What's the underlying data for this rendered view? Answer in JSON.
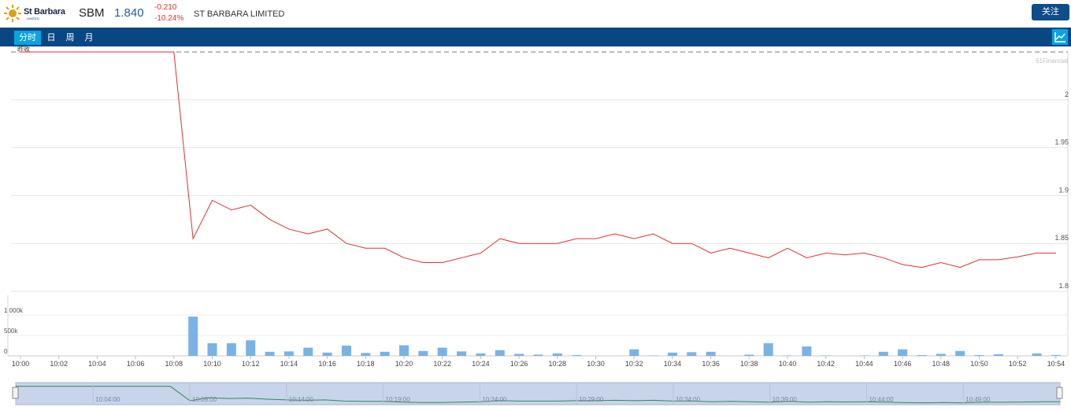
{
  "header": {
    "logo_text": "St Barbara",
    "logo_sub": "LIMITED",
    "ticker": "SBM",
    "price": "1.840",
    "change": "-0.210",
    "change_pct": "-10.24%",
    "company": "ST BARBARA LIMITED",
    "follow_label": "关注"
  },
  "tabs": [
    {
      "label": "分时",
      "active": true
    },
    {
      "label": "日",
      "active": false
    },
    {
      "label": "周",
      "active": false
    },
    {
      "label": "月",
      "active": false
    }
  ],
  "chart_icon": "line-chart-icon",
  "watermark": "61Financial",
  "prev_close_label": "昨收",
  "colors": {
    "price_line": "#e03030",
    "volume_bar": "#7ab2e6",
    "nav_bg": "#094783",
    "active_tab": "#0aa4e0",
    "navigator_line": "#2e8b57",
    "navigator_bg": "#c8d4ea"
  },
  "chart_data": [
    {
      "type": "line",
      "title": "",
      "x": [
        "10:00",
        "10:01",
        "10:02",
        "10:03",
        "10:04",
        "10:05",
        "10:06",
        "10:07",
        "10:08",
        "10:09",
        "10:10",
        "10:11",
        "10:12",
        "10:13",
        "10:14",
        "10:15",
        "10:16",
        "10:17",
        "10:18",
        "10:19",
        "10:20",
        "10:21",
        "10:22",
        "10:23",
        "10:24",
        "10:25",
        "10:26",
        "10:27",
        "10:28",
        "10:29",
        "10:30",
        "10:31",
        "10:32",
        "10:33",
        "10:34",
        "10:35",
        "10:36",
        "10:37",
        "10:38",
        "10:39",
        "10:40",
        "10:41",
        "10:42",
        "10:43",
        "10:44",
        "10:45",
        "10:46",
        "10:47",
        "10:48",
        "10:49",
        "10:50",
        "10:51",
        "10:52",
        "10:53",
        "10:54"
      ],
      "values": [
        2.05,
        2.05,
        2.05,
        2.05,
        2.05,
        2.05,
        2.05,
        2.05,
        2.05,
        1.855,
        1.895,
        1.885,
        1.89,
        1.875,
        1.865,
        1.86,
        1.865,
        1.85,
        1.845,
        1.845,
        1.835,
        1.83,
        1.83,
        1.835,
        1.84,
        1.855,
        1.85,
        1.85,
        1.85,
        1.855,
        1.855,
        1.86,
        1.855,
        1.86,
        1.85,
        1.85,
        1.84,
        1.845,
        1.84,
        1.835,
        1.845,
        1.835,
        1.84,
        1.838,
        1.84,
        1.835,
        1.828,
        1.825,
        1.83,
        1.825,
        1.833,
        1.833,
        1.836,
        1.84,
        1.84
      ],
      "prev_close": 2.05,
      "ylim": [
        1.8,
        2.05
      ],
      "yticks": [
        "2",
        "1.95",
        "1.9",
        "1.85",
        "1.8"
      ],
      "xticks": [
        "10:00",
        "10:02",
        "10:04",
        "10:06",
        "10:08",
        "10:10",
        "10:12",
        "10:14",
        "10:16",
        "10:18",
        "10:20",
        "10:22",
        "10:24",
        "10:26",
        "10:28",
        "10:30",
        "10:32",
        "10:34",
        "10:36",
        "10:38",
        "10:40",
        "10:42",
        "10:44",
        "10:46",
        "10:48",
        "10:50",
        "10:52",
        "10:54"
      ],
      "grid": true
    },
    {
      "type": "bar",
      "title": "",
      "x": [
        "10:00",
        "10:01",
        "10:02",
        "10:03",
        "10:04",
        "10:05",
        "10:06",
        "10:07",
        "10:08",
        "10:09",
        "10:10",
        "10:11",
        "10:12",
        "10:13",
        "10:14",
        "10:15",
        "10:16",
        "10:17",
        "10:18",
        "10:19",
        "10:20",
        "10:21",
        "10:22",
        "10:23",
        "10:24",
        "10:25",
        "10:26",
        "10:27",
        "10:28",
        "10:29",
        "10:30",
        "10:31",
        "10:32",
        "10:33",
        "10:34",
        "10:35",
        "10:36",
        "10:37",
        "10:38",
        "10:39",
        "10:40",
        "10:41",
        "10:42",
        "10:43",
        "10:44",
        "10:45",
        "10:46",
        "10:47",
        "10:48",
        "10:49",
        "10:50",
        "10:51",
        "10:52",
        "10:53",
        "10:54"
      ],
      "values": [
        0,
        0,
        0,
        0,
        0,
        0,
        0,
        0,
        0,
        960000,
        310000,
        310000,
        380000,
        100000,
        110000,
        200000,
        80000,
        250000,
        70000,
        100000,
        260000,
        120000,
        200000,
        110000,
        60000,
        140000,
        50000,
        30000,
        60000,
        20000,
        0,
        0,
        160000,
        10000,
        80000,
        90000,
        100000,
        0,
        30000,
        310000,
        10000,
        230000,
        10000,
        0,
        10000,
        100000,
        160000,
        20000,
        50000,
        120000,
        20000,
        40000,
        0,
        60000,
        20000
      ],
      "yticks": [
        "1 000k",
        "500k",
        "0"
      ],
      "ylim": [
        0,
        1000000
      ]
    }
  ],
  "navigator": {
    "labels": [
      "10:04:00",
      "10:09:00",
      "10:14:00",
      "10:19:00",
      "10:24:00",
      "10:29:00",
      "10:34:00",
      "10:39:00",
      "10:44:00",
      "10:49:00"
    ]
  }
}
